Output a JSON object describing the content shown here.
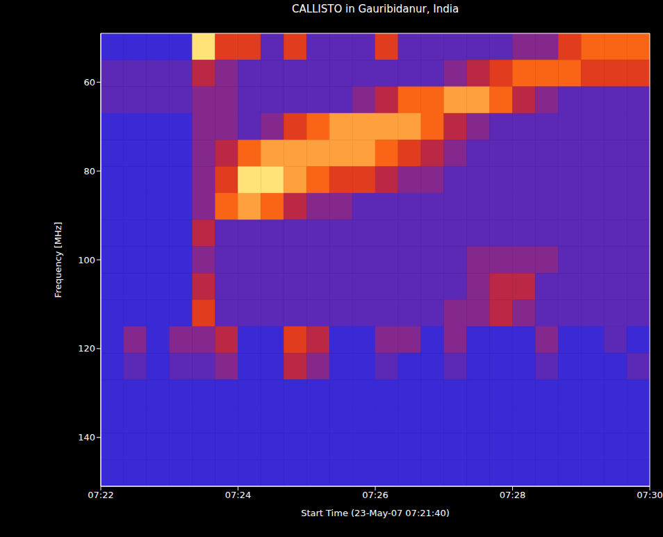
{
  "chart_data": {
    "type": "heatmap",
    "title": "CALLISTO in Gauribidanur, India",
    "x_label": "Start Time (23-May-07 07:21:40)",
    "y_label": "Frequency [MHz]",
    "xlim": [
      22,
      30
    ],
    "xticks": [
      {
        "value": 22,
        "label": "07:22"
      },
      {
        "value": 24,
        "label": "07:24"
      },
      {
        "value": 26,
        "label": "07:26"
      },
      {
        "value": 28,
        "label": "07:28"
      },
      {
        "value": 30,
        "label": "07:30"
      }
    ],
    "ylim": [
      49,
      151
    ],
    "yticks": [
      60,
      80,
      100,
      120,
      140
    ],
    "grid": false,
    "x_edges": [
      22,
      22.333,
      22.667,
      23,
      23.333,
      23.667,
      24,
      24.333,
      24.667,
      25,
      25.333,
      25.667,
      26,
      26.333,
      26.667,
      27,
      27.333,
      27.667,
      28,
      28.333,
      28.667,
      29,
      29.333,
      29.667,
      30
    ],
    "y_edges": [
      49,
      55,
      61,
      67,
      73,
      79,
      85,
      91,
      97,
      103,
      109,
      115,
      121,
      127,
      133,
      139,
      145,
      151
    ],
    "zlim": [
      1,
      8
    ],
    "z": [
      [
        1,
        1,
        1,
        1,
        8,
        5,
        5,
        2,
        5,
        2,
        2,
        2,
        5,
        2,
        2,
        2,
        2,
        2,
        3,
        3,
        5,
        6,
        6,
        6
      ],
      [
        2,
        2,
        2,
        2,
        4,
        3,
        2,
        2,
        2,
        2,
        2,
        2,
        2,
        2,
        2,
        3,
        4,
        5,
        6,
        6,
        6,
        5,
        5,
        5
      ],
      [
        2,
        2,
        2,
        2,
        3,
        3,
        2,
        2,
        2,
        2,
        2,
        3,
        4,
        6,
        6,
        7,
        7,
        6,
        4,
        3,
        2,
        2,
        2,
        2
      ],
      [
        1,
        1,
        1,
        1,
        3,
        3,
        2,
        3,
        5,
        6,
        7,
        7,
        7,
        7,
        6,
        4,
        3,
        2,
        2,
        2,
        2,
        2,
        2,
        2
      ],
      [
        1,
        1,
        1,
        1,
        3,
        4,
        6,
        7,
        7,
        7,
        7,
        7,
        6,
        5,
        4,
        3,
        2,
        2,
        2,
        2,
        2,
        2,
        2,
        2
      ],
      [
        1,
        1,
        1,
        1,
        3,
        5,
        8,
        8,
        7,
        6,
        5,
        5,
        4,
        3,
        3,
        2,
        2,
        2,
        2,
        2,
        2,
        2,
        2,
        2
      ],
      [
        1,
        1,
        1,
        1,
        3,
        6,
        7,
        6,
        4,
        3,
        3,
        2,
        2,
        2,
        2,
        2,
        2,
        2,
        2,
        2,
        2,
        2,
        2,
        2
      ],
      [
        1,
        1,
        1,
        1,
        4,
        2,
        2,
        2,
        2,
        2,
        2,
        2,
        2,
        2,
        2,
        2,
        2,
        2,
        2,
        2,
        2,
        2,
        2,
        2
      ],
      [
        1,
        1,
        1,
        1,
        3,
        2,
        2,
        2,
        2,
        2,
        2,
        2,
        2,
        2,
        2,
        2,
        3,
        3,
        3,
        3,
        2,
        2,
        2,
        2
      ],
      [
        1,
        1,
        1,
        1,
        4,
        2,
        2,
        2,
        2,
        2,
        2,
        2,
        2,
        2,
        2,
        2,
        3,
        4,
        4,
        2,
        2,
        2,
        2,
        2
      ],
      [
        1,
        1,
        1,
        1,
        5,
        2,
        2,
        2,
        2,
        2,
        2,
        2,
        2,
        2,
        2,
        3,
        3,
        4,
        3,
        2,
        2,
        2,
        2,
        2
      ],
      [
        1,
        3,
        1,
        3,
        3,
        4,
        1,
        1,
        5,
        4,
        1,
        1,
        3,
        3,
        1,
        3,
        1,
        1,
        1,
        3,
        1,
        1,
        2,
        1
      ],
      [
        1,
        2,
        1,
        2,
        2,
        3,
        1,
        1,
        4,
        3,
        1,
        1,
        2,
        1,
        1,
        2,
        1,
        1,
        1,
        2,
        1,
        1,
        1,
        2
      ],
      [
        1,
        1,
        1,
        1,
        1,
        1,
        1,
        1,
        1,
        1,
        1,
        1,
        1,
        1,
        1,
        1,
        1,
        1,
        1,
        1,
        1,
        1,
        1,
        1
      ],
      [
        1,
        1,
        1,
        1,
        1,
        1,
        1,
        1,
        1,
        1,
        1,
        1,
        1,
        1,
        1,
        1,
        1,
        1,
        1,
        1,
        1,
        1,
        1,
        1
      ],
      [
        1,
        1,
        1,
        1,
        1,
        1,
        1,
        1,
        1,
        1,
        1,
        1,
        1,
        1,
        1,
        1,
        1,
        1,
        1,
        1,
        1,
        1,
        1,
        1
      ],
      [
        1,
        1,
        1,
        1,
        1,
        1,
        1,
        1,
        1,
        1,
        1,
        1,
        1,
        1,
        1,
        1,
        1,
        1,
        1,
        1,
        1,
        1,
        1,
        1
      ]
    ]
  }
}
